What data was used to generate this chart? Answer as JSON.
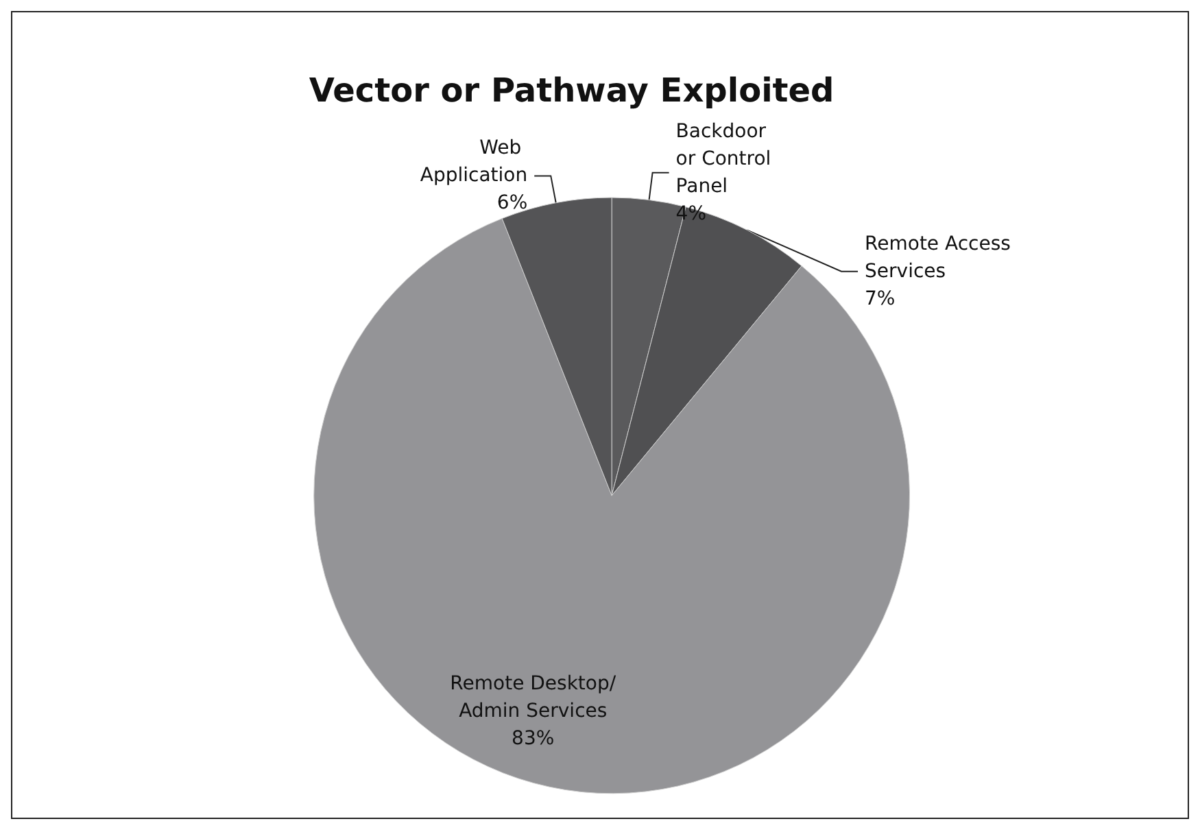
{
  "chart_data": {
    "type": "pie",
    "title": "Vector or Pathway Exploited",
    "categories": [
      "Backdoor or Control Panel",
      "Remote Access Services",
      "Remote Desktop/Admin Services",
      "Web Application"
    ],
    "values": [
      4,
      7,
      83,
      6
    ],
    "value_labels": [
      "4%",
      "7%",
      "83%",
      "6%"
    ],
    "colors": [
      "#5a5a5c",
      "#505052",
      "#949497",
      "#545456"
    ],
    "legend": false
  }
}
